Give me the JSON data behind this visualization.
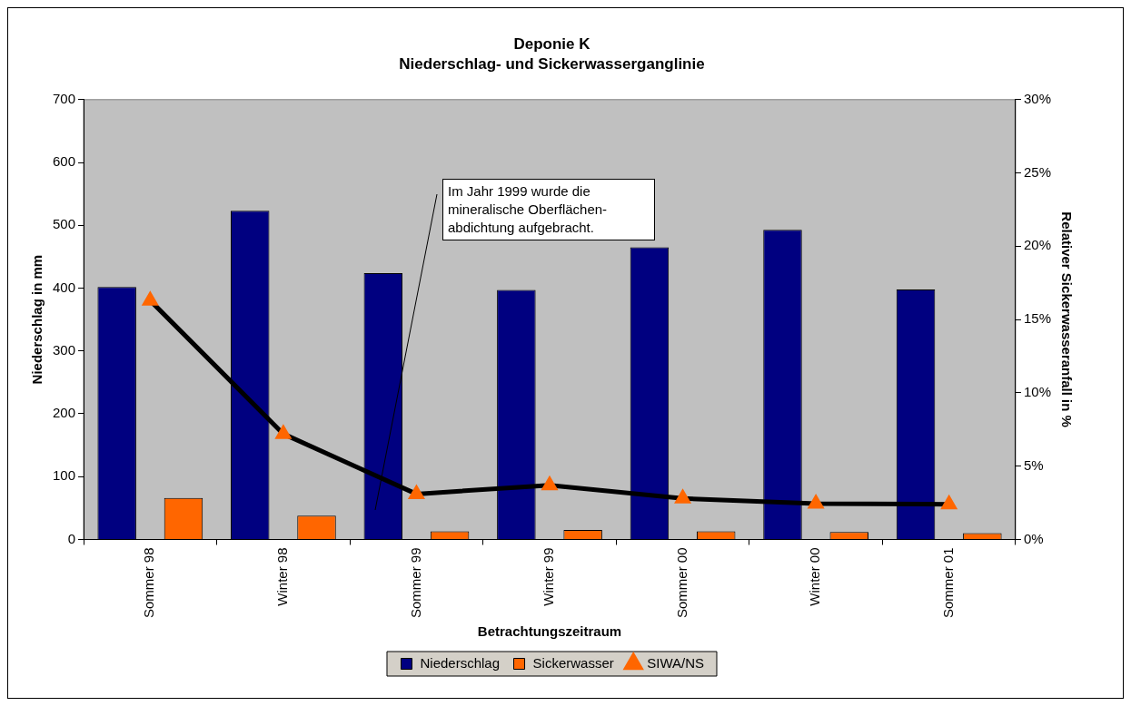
{
  "chart_data": {
    "type": "bar",
    "title": "Deponie K",
    "subtitle": "Niederschlag- und Sickerwasserganglinie",
    "xlabel": "Betrachtungszeitraum",
    "ylabel": "Niederschlag in mm",
    "y2label": "Relativer Sickerwasseranfall in %",
    "categories": [
      "Sommer 98",
      "Winter 98",
      "Sommer 99",
      "Winter 99",
      "Sommer 00",
      "Winter 00",
      "Sommer 01"
    ],
    "series": [
      {
        "name": "Niederschlag",
        "color": "#000080",
        "values": [
          402,
          523,
          424,
          397,
          465,
          493,
          398
        ]
      },
      {
        "name": "Sickerwasser",
        "color": "#ff6600",
        "values": [
          66,
          38,
          13,
          15,
          13,
          12,
          10
        ]
      },
      {
        "name": "SIWA/NS",
        "type": "line",
        "axis": "y2",
        "color": "#000000",
        "marker": "triangle",
        "values": [
          16.3,
          7.2,
          3.1,
          3.7,
          2.8,
          2.45,
          2.4
        ]
      }
    ],
    "ylim": [
      0,
      700
    ],
    "yticks": [
      0,
      100,
      200,
      300,
      400,
      500,
      600,
      700
    ],
    "y2lim": [
      0,
      30
    ],
    "y2ticks": [
      {
        "value": 0,
        "label": "0%"
      },
      {
        "value": 5,
        "label": "5%"
      },
      {
        "value": 10,
        "label": "10%"
      },
      {
        "value": 15,
        "label": "15%"
      },
      {
        "value": 20,
        "label": "20%"
      },
      {
        "value": 25,
        "label": "25%"
      },
      {
        "value": 30,
        "label": "30%"
      }
    ],
    "annotations": [
      "Im Jahr 1999 wurde die mineralische Oberflächen-abdichtung aufgebracht."
    ],
    "grid": false,
    "legend": "bottom"
  }
}
